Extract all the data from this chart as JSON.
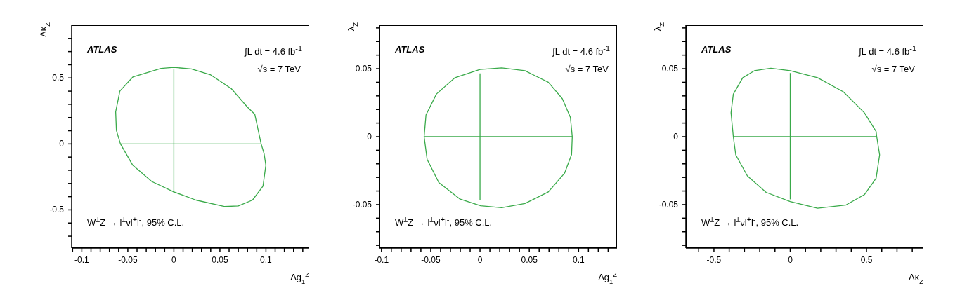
{
  "chart_data": [
    {
      "type": "line",
      "xlabel": "Δg$_{1}$$^{Z}$",
      "ylabel": "Δκ$_{Z}$",
      "marker": "none",
      "line_style": "solid",
      "annotations": [
        "ATLAS",
        "∫L dt = 4.6 fb$^{-1}$",
        "√s = 7 TeV",
        "W$^{±}$Z → l$^{±}$νl$^{+}$l$^{-}$, 95% C.L."
      ],
      "xlim": [
        -0.111,
        0.147
      ],
      "ylim": [
        -0.79,
        0.9
      ],
      "xticks": [
        {
          "value": -0.11,
          "label": null
        },
        -0.1,
        {
          "value": -0.09,
          "label": null
        },
        {
          "value": -0.08,
          "label": null
        },
        {
          "value": -0.07,
          "label": null
        },
        {
          "value": -0.06,
          "label": null
        },
        -0.05,
        {
          "value": -0.04,
          "label": null
        },
        {
          "value": -0.03,
          "label": null
        },
        {
          "value": -0.02,
          "label": null
        },
        {
          "value": -0.01,
          "label": null
        },
        0,
        {
          "value": 0.01,
          "label": null
        },
        {
          "value": 0.02,
          "label": null
        },
        {
          "value": 0.03,
          "label": null
        },
        {
          "value": 0.04,
          "label": null
        },
        0.05,
        {
          "value": 0.06,
          "label": null
        },
        {
          "value": 0.07,
          "label": null
        },
        {
          "value": 0.08,
          "label": null
        },
        {
          "value": 0.09,
          "label": null
        },
        0.1,
        {
          "value": 0.11,
          "label": null
        },
        {
          "value": 0.12,
          "label": null
        },
        {
          "value": 0.13,
          "label": null
        },
        {
          "value": 0.14,
          "label": null
        }
      ],
      "yticks": [
        {
          "value": -0.7,
          "label": null
        },
        {
          "value": -0.6,
          "label": null
        },
        -0.5,
        {
          "value": -0.4,
          "label": null
        },
        {
          "value": -0.3,
          "label": null
        },
        {
          "value": -0.2,
          "label": null
        },
        {
          "value": -0.1,
          "label": null
        },
        0,
        {
          "value": 0.1,
          "label": null
        },
        {
          "value": 0.2,
          "label": null
        },
        {
          "value": 0.3,
          "label": null
        },
        {
          "value": 0.4,
          "label": null
        },
        0.5,
        {
          "value": 0.6,
          "label": null
        },
        {
          "value": 0.7,
          "label": null
        },
        {
          "value": 0.8,
          "label": null
        }
      ],
      "series": [
        {
          "color": "#3aaa4a",
          "x": [
            -0.058,
            0.0948
          ],
          "values": [
            0,
            0
          ]
        },
        {
          "color": "#3aaa4a",
          "x": [
            0,
            0
          ],
          "values": [
            0.565,
            -0.37
          ]
        }
      ]
    },
    {
      "type": "line",
      "xlabel": "Δg$_{1}$$^{Z}$",
      "ylabel": "λ$_{Z}$",
      "marker": "none",
      "line_style": "solid",
      "annotations": [
        "ATLAS",
        "∫L dt = 4.6 fb$^{-1}$",
        "√s = 7 TeV",
        "W$^{±}$Z → l$^{±}$νl$^{+}$l$^{-}$, 95% C.L."
      ],
      "xlim": [
        -0.102,
        0.139
      ],
      "ylim": [
        -0.082,
        0.082
      ],
      "xticks": [
        -0.1,
        {
          "value": -0.09,
          "label": null
        },
        {
          "value": -0.08,
          "label": null
        },
        {
          "value": -0.07,
          "label": null
        },
        {
          "value": -0.06,
          "label": null
        },
        -0.05,
        {
          "value": -0.04,
          "label": null
        },
        {
          "value": -0.03,
          "label": null
        },
        {
          "value": -0.02,
          "label": null
        },
        {
          "value": -0.01,
          "label": null
        },
        0,
        {
          "value": 0.01,
          "label": null
        },
        {
          "value": 0.02,
          "label": null
        },
        {
          "value": 0.03,
          "label": null
        },
        {
          "value": 0.04,
          "label": null
        },
        0.05,
        {
          "value": 0.06,
          "label": null
        },
        {
          "value": 0.07,
          "label": null
        },
        {
          "value": 0.08,
          "label": null
        },
        {
          "value": 0.09,
          "label": null
        },
        0.1,
        {
          "value": 0.11,
          "label": null
        },
        {
          "value": 0.12,
          "label": null
        },
        {
          "value": 0.13,
          "label": null
        }
      ],
      "yticks": [
        {
          "value": -0.08,
          "label": null
        },
        {
          "value": -0.07,
          "label": null
        },
        {
          "value": -0.06,
          "label": null
        },
        -0.05,
        {
          "value": -0.04,
          "label": null
        },
        {
          "value": -0.03,
          "label": null
        },
        {
          "value": -0.02,
          "label": null
        },
        {
          "value": -0.01,
          "label": null
        },
        0,
        {
          "value": 0.01,
          "label": null
        },
        {
          "value": 0.02,
          "label": null
        },
        {
          "value": 0.03,
          "label": null
        },
        {
          "value": 0.04,
          "label": null
        },
        0.05,
        {
          "value": 0.06,
          "label": null
        },
        {
          "value": 0.07,
          "label": null
        },
        {
          "value": 0.08,
          "label": null
        }
      ],
      "series": [
        {
          "color": "#3aaa4a",
          "x": [
            -0.0567,
            0.0936
          ],
          "values": [
            0,
            0
          ]
        },
        {
          "color": "#3aaa4a",
          "x": [
            0,
            0
          ],
          "values": [
            0.0465,
            -0.0467
          ]
        }
      ]
    },
    {
      "type": "line",
      "xlabel": "Δκ$_{Z}$",
      "ylabel": "λ$_{Z}$",
      "marker": "none",
      "line_style": "solid",
      "annotations": [
        "ATLAS",
        "∫L dt = 4.6 fb$^{-1}$",
        "√s = 7 TeV",
        "W$^{±}$Z → l$^{±}$νl$^{+}$l$^{-}$, 95% C.L."
      ],
      "xlim": [
        -0.684,
        0.873
      ],
      "ylim": [
        -0.082,
        0.082
      ],
      "xticks": [
        {
          "value": -0.6,
          "label": null
        },
        -0.5,
        {
          "value": -0.4,
          "label": null
        },
        {
          "value": -0.3,
          "label": null
        },
        {
          "value": -0.2,
          "label": null
        },
        {
          "value": -0.1,
          "label": null
        },
        0,
        {
          "value": 0.1,
          "label": null
        },
        {
          "value": 0.2,
          "label": null
        },
        {
          "value": 0.3,
          "label": null
        },
        {
          "value": 0.4,
          "label": null
        },
        0.5,
        {
          "value": 0.6,
          "label": null
        },
        {
          "value": 0.7,
          "label": null
        },
        {
          "value": 0.8,
          "label": null
        }
      ],
      "yticks": [
        {
          "value": -0.08,
          "label": null
        },
        {
          "value": -0.07,
          "label": null
        },
        {
          "value": -0.06,
          "label": null
        },
        -0.05,
        {
          "value": -0.04,
          "label": null
        },
        {
          "value": -0.03,
          "label": null
        },
        {
          "value": -0.02,
          "label": null
        },
        {
          "value": -0.01,
          "label": null
        },
        0,
        {
          "value": 0.01,
          "label": null
        },
        {
          "value": 0.02,
          "label": null
        },
        {
          "value": 0.03,
          "label": null
        },
        {
          "value": 0.04,
          "label": null
        },
        0.05,
        {
          "value": 0.06,
          "label": null
        },
        {
          "value": 0.07,
          "label": null
        },
        {
          "value": 0.08,
          "label": null
        }
      ],
      "series": [
        {
          "color": "#3aaa4a",
          "x": [
            -0.373,
            0.567
          ],
          "values": [
            0,
            0
          ]
        },
        {
          "color": "#3aaa4a",
          "x": [
            0,
            0
          ],
          "values": [
            0.0468,
            -0.0461
          ]
        }
      ]
    }
  ]
}
